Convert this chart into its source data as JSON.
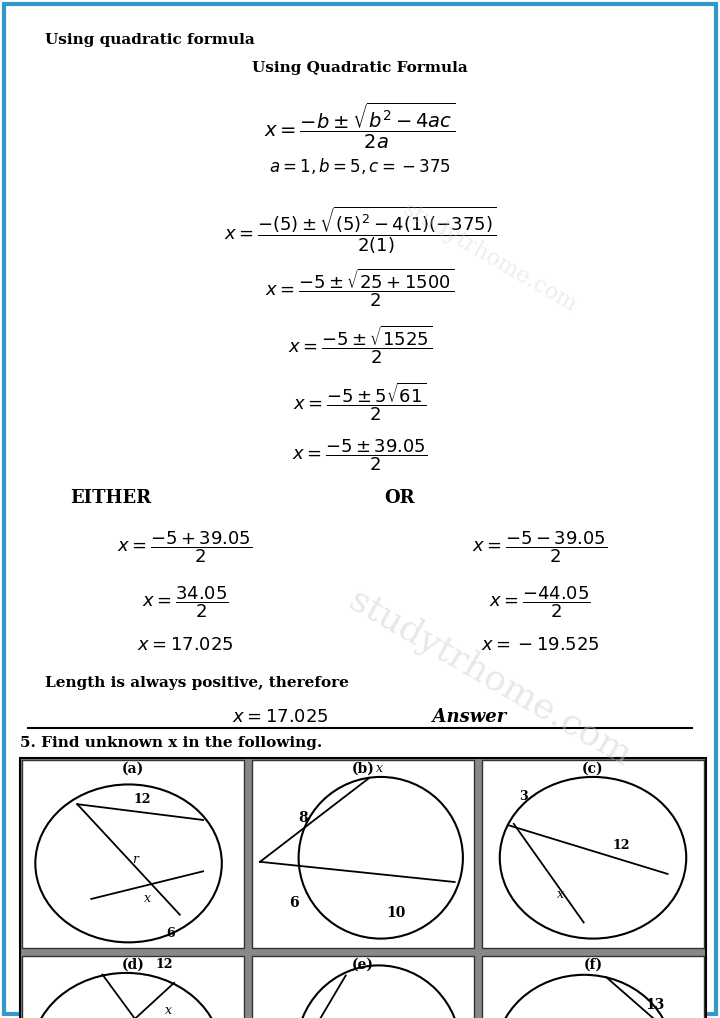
{
  "bg_color": "#ffffff",
  "border_color": "#3399cc",
  "title_top": "Using quadratic formula",
  "watermark": "studytrhome.com",
  "either_label": "EITHER",
  "or_label": "OR",
  "length_note": "Length is always positive, therefore",
  "q5_label": "5. Find unknown x in the following.",
  "sub_labels": [
    "(a)",
    "(b)",
    "(c)",
    "(d)",
    "(e)",
    "(f)"
  ]
}
